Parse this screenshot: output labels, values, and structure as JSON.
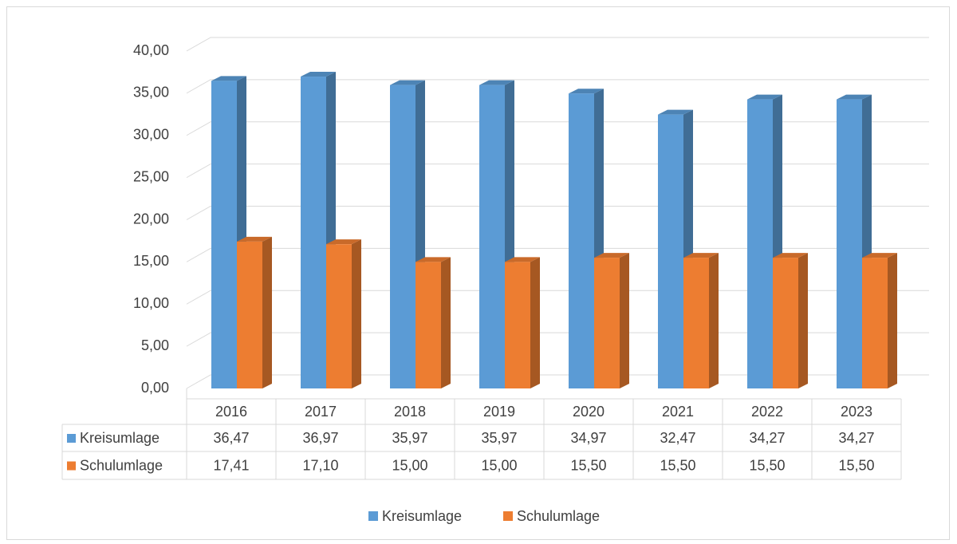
{
  "chart_data": {
    "type": "bar",
    "categories": [
      "2016",
      "2017",
      "2018",
      "2019",
      "2020",
      "2021",
      "2022",
      "2023"
    ],
    "series": [
      {
        "name": "Kreisumlage",
        "color": "#5b9bd5",
        "values": [
          36.47,
          36.97,
          35.97,
          35.97,
          34.97,
          32.47,
          34.27,
          34.27
        ],
        "value_labels": [
          "36,47",
          "36,97",
          "35,97",
          "35,97",
          "34,97",
          "32,47",
          "34,27",
          "34,27"
        ]
      },
      {
        "name": "Schulumlage",
        "color": "#ed7d31",
        "values": [
          17.41,
          17.1,
          15.0,
          15.0,
          15.5,
          15.5,
          15.5,
          15.5
        ],
        "value_labels": [
          "17,41",
          "17,10",
          "15,00",
          "15,00",
          "15,50",
          "15,50",
          "15,50",
          "15,50"
        ]
      }
    ],
    "ylim": [
      0,
      40
    ],
    "yticks": [
      {
        "value": 0,
        "label": "0,00"
      },
      {
        "value": 5,
        "label": "5,00"
      },
      {
        "value": 10,
        "label": "10,00"
      },
      {
        "value": 15,
        "label": "15,00"
      },
      {
        "value": 20,
        "label": "20,00"
      },
      {
        "value": 25,
        "label": "25,00"
      },
      {
        "value": 30,
        "label": "30,00"
      },
      {
        "value": 35,
        "label": "35,00"
      },
      {
        "value": 40,
        "label": "40,00"
      }
    ],
    "grid": true,
    "legend": "bottom",
    "data_table": true
  }
}
